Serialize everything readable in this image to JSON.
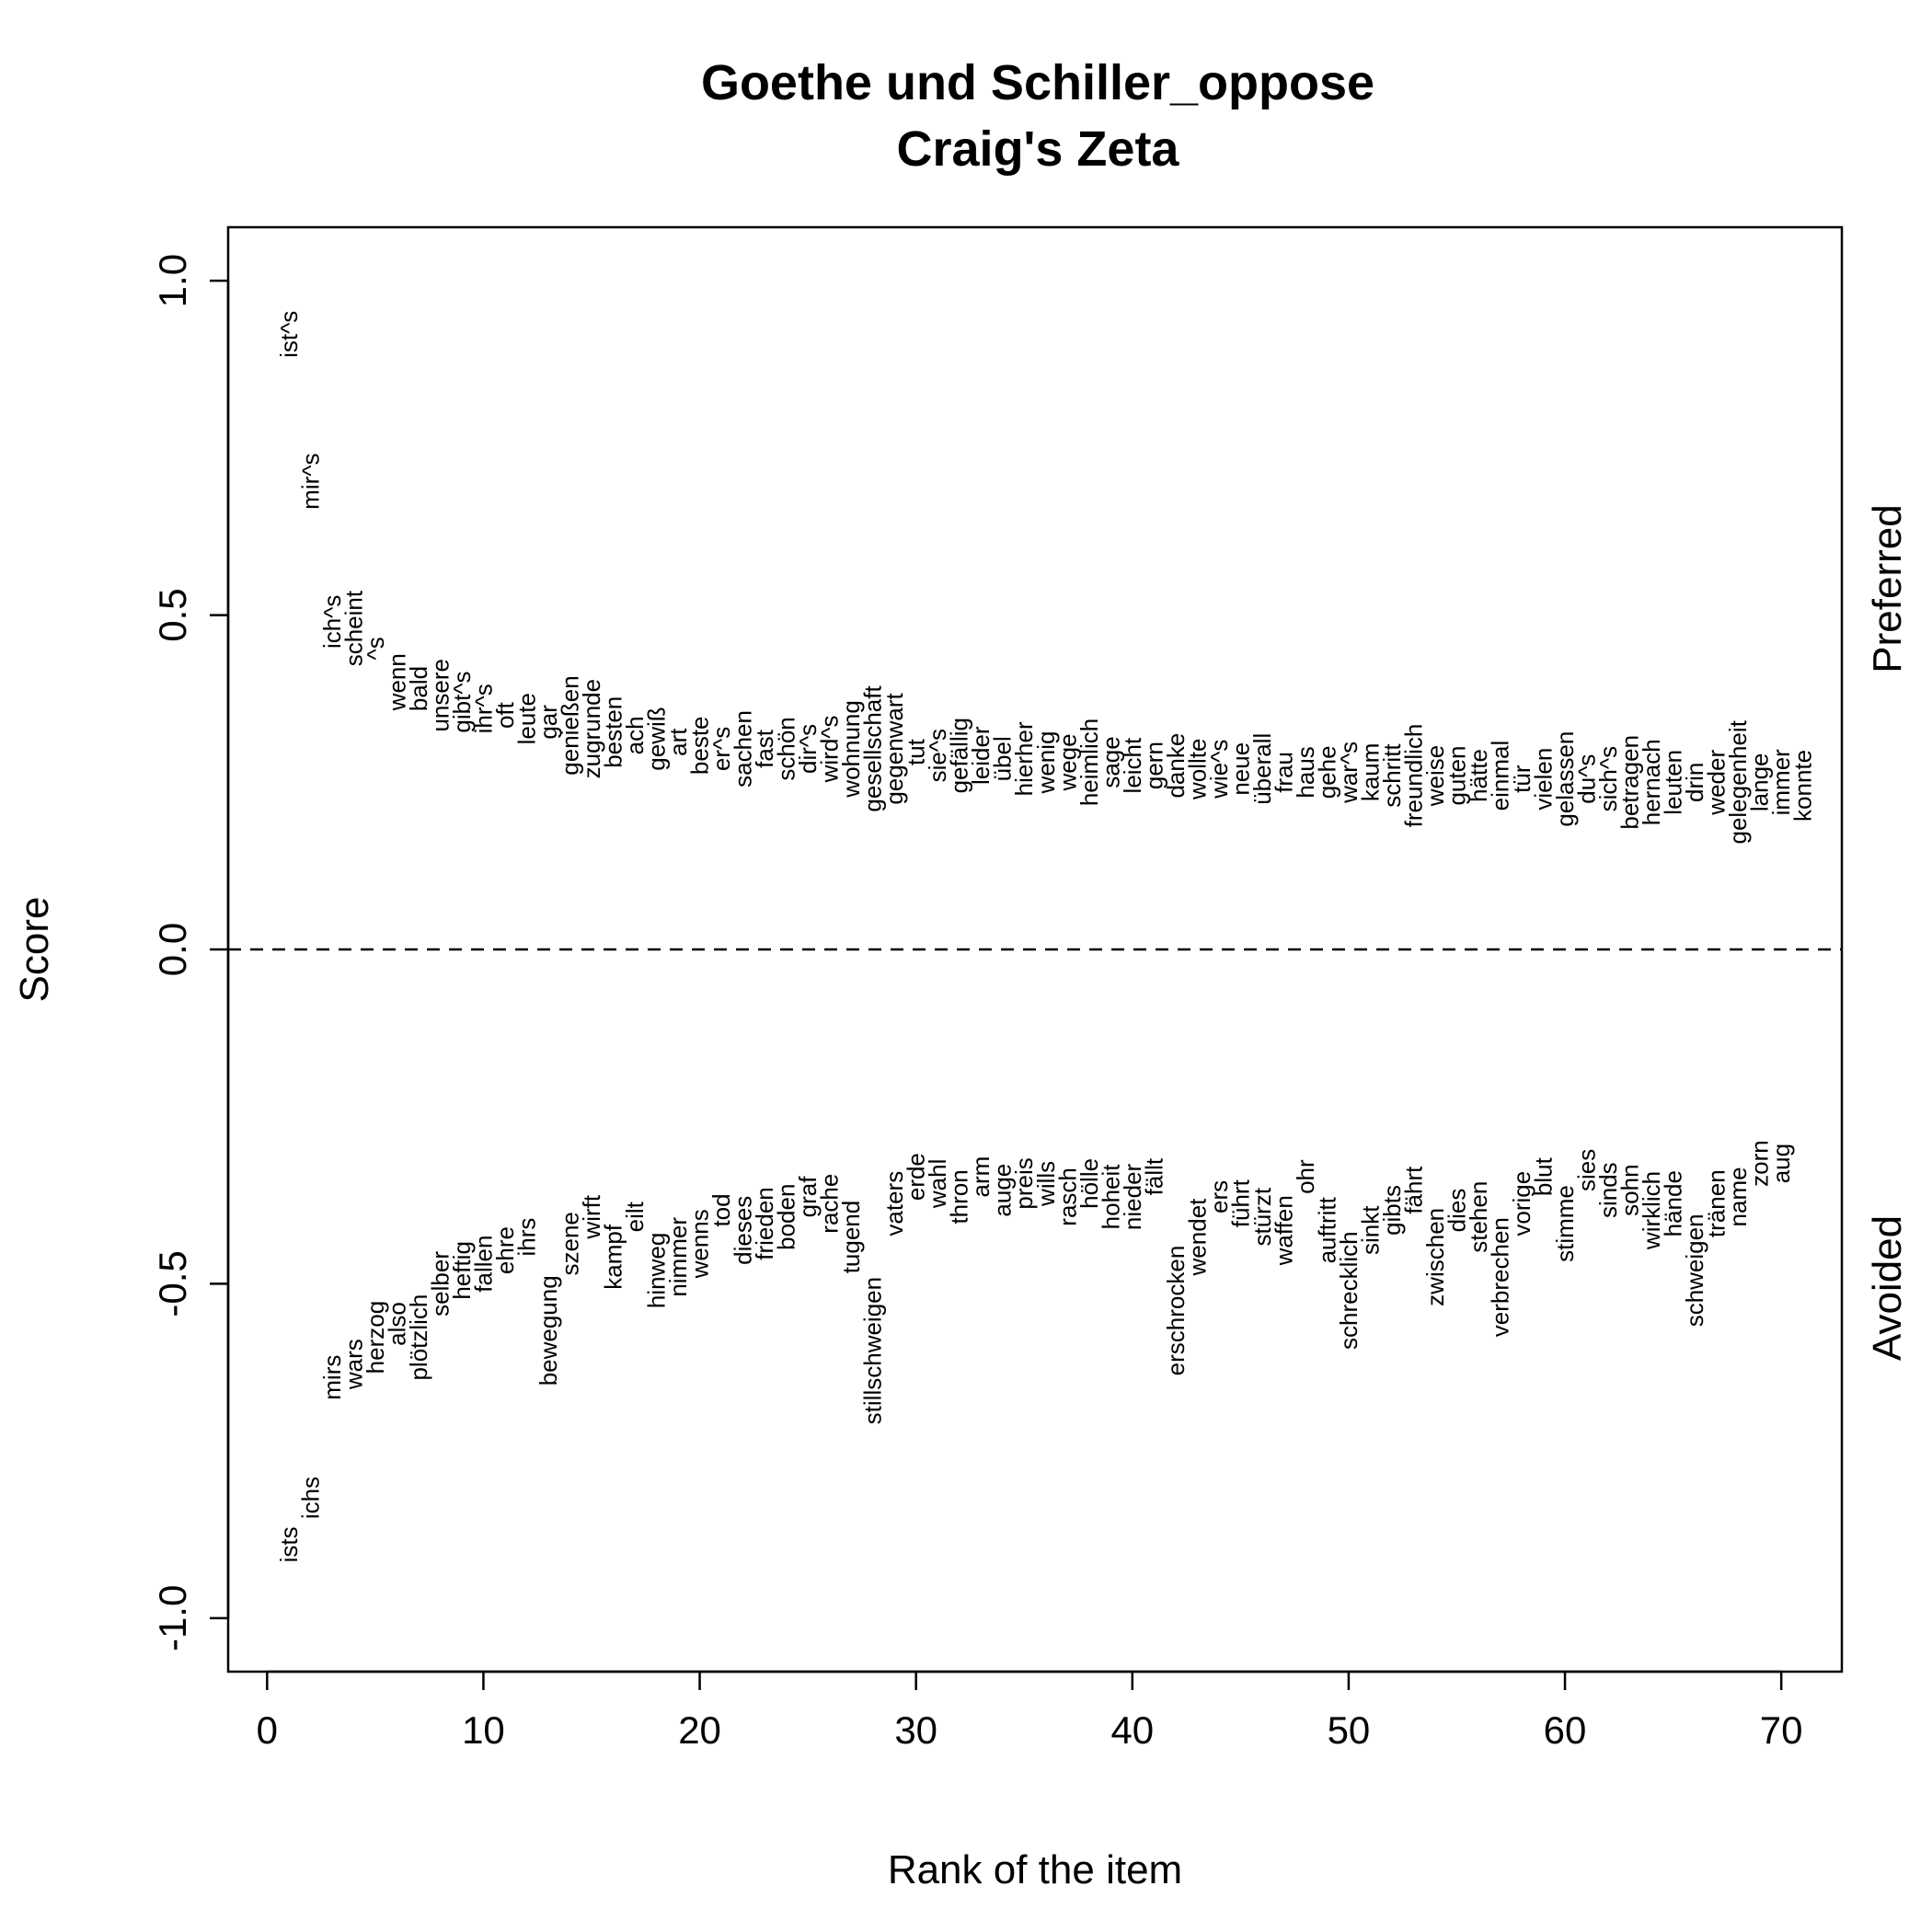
{
  "chart_data": {
    "type": "scatter",
    "title": "Goethe und Schiller_oppose",
    "subtitle": "Craig's Zeta",
    "xlabel": "Rank of the item",
    "ylabel": "Score",
    "xlim": [
      -1.8,
      72.8
    ],
    "ylim": [
      -1.08,
      1.08
    ],
    "xticks": [
      0,
      10,
      20,
      30,
      40,
      50,
      60,
      70
    ],
    "xtick_labels": [
      "0",
      "10",
      "20",
      "30",
      "40",
      "50",
      "60",
      "70"
    ],
    "yticks": [
      -1.0,
      -0.5,
      0.0,
      0.5,
      1.0
    ],
    "ytick_labels": [
      "-1.0",
      "-0.5",
      "0.0",
      "0.5",
      "1.0"
    ],
    "reference_line": {
      "y": 0,
      "style": "dashed"
    },
    "grid": false,
    "legend": "none",
    "side_labels": {
      "top": "Preferred",
      "bottom": "Avoided"
    },
    "series": [
      {
        "name": "Preferred",
        "points": [
          {
            "x": 1,
            "y": 0.92,
            "label": "ist^s"
          },
          {
            "x": 2,
            "y": 0.7,
            "label": "mir^s"
          },
          {
            "x": 3,
            "y": 0.49,
            "label": "ich^s"
          },
          {
            "x": 4,
            "y": 0.48,
            "label": "scheint"
          },
          {
            "x": 5,
            "y": 0.45,
            "label": "^s"
          },
          {
            "x": 6,
            "y": 0.4,
            "label": "wenn"
          },
          {
            "x": 7,
            "y": 0.39,
            "label": "bald"
          },
          {
            "x": 8,
            "y": 0.38,
            "label": "unsere"
          },
          {
            "x": 9,
            "y": 0.37,
            "label": "gibt^s"
          },
          {
            "x": 10,
            "y": 0.36,
            "label": "ihr^s"
          },
          {
            "x": 11,
            "y": 0.35,
            "label": "oft"
          },
          {
            "x": 12,
            "y": 0.345,
            "label": "leute"
          },
          {
            "x": 13,
            "y": 0.34,
            "label": "gar"
          },
          {
            "x": 14,
            "y": 0.335,
            "label": "genießen"
          },
          {
            "x": 15,
            "y": 0.33,
            "label": "zugrunde"
          },
          {
            "x": 16,
            "y": 0.325,
            "label": "besten"
          },
          {
            "x": 17,
            "y": 0.32,
            "label": "ach"
          },
          {
            "x": 18,
            "y": 0.315,
            "label": "gewiß"
          },
          {
            "x": 19,
            "y": 0.31,
            "label": "art"
          },
          {
            "x": 20,
            "y": 0.305,
            "label": "beste"
          },
          {
            "x": 21,
            "y": 0.3,
            "label": "er^s"
          },
          {
            "x": 22,
            "y": 0.3,
            "label": "sachen"
          },
          {
            "x": 23,
            "y": 0.3,
            "label": "fast"
          },
          {
            "x": 24,
            "y": 0.3,
            "label": "schön"
          },
          {
            "x": 25,
            "y": 0.3,
            "label": "dir^s"
          },
          {
            "x": 26,
            "y": 0.3,
            "label": "wird^s"
          },
          {
            "x": 27,
            "y": 0.3,
            "label": "wohnung"
          },
          {
            "x": 28,
            "y": 0.3,
            "label": "gesellschaft"
          },
          {
            "x": 29,
            "y": 0.3,
            "label": "gegenwart"
          },
          {
            "x": 30,
            "y": 0.295,
            "label": "tut"
          },
          {
            "x": 31,
            "y": 0.29,
            "label": "sie^s"
          },
          {
            "x": 32,
            "y": 0.29,
            "label": "gefällig"
          },
          {
            "x": 33,
            "y": 0.29,
            "label": "leider"
          },
          {
            "x": 34,
            "y": 0.285,
            "label": "übel"
          },
          {
            "x": 35,
            "y": 0.285,
            "label": "hierher"
          },
          {
            "x": 36,
            "y": 0.28,
            "label": "wenig"
          },
          {
            "x": 37,
            "y": 0.28,
            "label": "wege"
          },
          {
            "x": 38,
            "y": 0.28,
            "label": "heimlich"
          },
          {
            "x": 39,
            "y": 0.28,
            "label": "sage"
          },
          {
            "x": 40,
            "y": 0.275,
            "label": "leicht"
          },
          {
            "x": 41,
            "y": 0.275,
            "label": "gern"
          },
          {
            "x": 42,
            "y": 0.275,
            "label": "danke"
          },
          {
            "x": 43,
            "y": 0.27,
            "label": "wollte"
          },
          {
            "x": 44,
            "y": 0.27,
            "label": "wie^s"
          },
          {
            "x": 45,
            "y": 0.27,
            "label": "neue"
          },
          {
            "x": 46,
            "y": 0.27,
            "label": "überall"
          },
          {
            "x": 47,
            "y": 0.265,
            "label": "frau"
          },
          {
            "x": 48,
            "y": 0.265,
            "label": "haus"
          },
          {
            "x": 49,
            "y": 0.265,
            "label": "gehe"
          },
          {
            "x": 50,
            "y": 0.265,
            "label": "war^s"
          },
          {
            "x": 51,
            "y": 0.265,
            "label": "kaum"
          },
          {
            "x": 52,
            "y": 0.26,
            "label": "schritt"
          },
          {
            "x": 53,
            "y": 0.26,
            "label": "freundlich"
          },
          {
            "x": 54,
            "y": 0.26,
            "label": "weise"
          },
          {
            "x": 55,
            "y": 0.26,
            "label": "guten"
          },
          {
            "x": 56,
            "y": 0.26,
            "label": "hätte"
          },
          {
            "x": 57,
            "y": 0.26,
            "label": "einmal"
          },
          {
            "x": 58,
            "y": 0.255,
            "label": "tür"
          },
          {
            "x": 59,
            "y": 0.255,
            "label": "vielen"
          },
          {
            "x": 60,
            "y": 0.255,
            "label": "gelassen"
          },
          {
            "x": 61,
            "y": 0.255,
            "label": "du^s"
          },
          {
            "x": 62,
            "y": 0.255,
            "label": "sich^s"
          },
          {
            "x": 63,
            "y": 0.25,
            "label": "betragen"
          },
          {
            "x": 64,
            "y": 0.25,
            "label": "hernach"
          },
          {
            "x": 65,
            "y": 0.25,
            "label": "leuten"
          },
          {
            "x": 66,
            "y": 0.25,
            "label": "drin"
          },
          {
            "x": 67,
            "y": 0.25,
            "label": "weder"
          },
          {
            "x": 68,
            "y": 0.25,
            "label": "gelegenheit"
          },
          {
            "x": 69,
            "y": 0.25,
            "label": "lange"
          },
          {
            "x": 70,
            "y": 0.25,
            "label": "immer"
          },
          {
            "x": 71,
            "y": 0.245,
            "label": "konnte"
          }
        ]
      },
      {
        "name": "Avoided",
        "points": [
          {
            "x": 1,
            "y": -0.89,
            "label": "ists"
          },
          {
            "x": 2,
            "y": -0.82,
            "label": "ichs"
          },
          {
            "x": 3,
            "y": -0.64,
            "label": "mirs"
          },
          {
            "x": 4,
            "y": -0.62,
            "label": "wars"
          },
          {
            "x": 5,
            "y": -0.58,
            "label": "herzog"
          },
          {
            "x": 6,
            "y": -0.56,
            "label": "also"
          },
          {
            "x": 7,
            "y": -0.58,
            "label": "plötzlich"
          },
          {
            "x": 8,
            "y": -0.5,
            "label": "selber"
          },
          {
            "x": 9,
            "y": -0.48,
            "label": "heftig"
          },
          {
            "x": 10,
            "y": -0.47,
            "label": "fallen"
          },
          {
            "x": 11,
            "y": -0.45,
            "label": "ehre"
          },
          {
            "x": 12,
            "y": -0.43,
            "label": "ihrs"
          },
          {
            "x": 13,
            "y": -0.57,
            "label": "bewegung"
          },
          {
            "x": 14,
            "y": -0.44,
            "label": "szene"
          },
          {
            "x": 15,
            "y": -0.4,
            "label": "wirft"
          },
          {
            "x": 16,
            "y": -0.46,
            "label": "kampf"
          },
          {
            "x": 17,
            "y": -0.4,
            "label": "eilt"
          },
          {
            "x": 18,
            "y": -0.48,
            "label": "hinweg"
          },
          {
            "x": 19,
            "y": -0.46,
            "label": "nimmer"
          },
          {
            "x": 20,
            "y": -0.44,
            "label": "wenns"
          },
          {
            "x": 21,
            "y": -0.39,
            "label": "tod"
          },
          {
            "x": 22,
            "y": -0.42,
            "label": "dieses"
          },
          {
            "x": 23,
            "y": -0.41,
            "label": "frieden"
          },
          {
            "x": 24,
            "y": -0.4,
            "label": "boden"
          },
          {
            "x": 25,
            "y": -0.37,
            "label": "graf"
          },
          {
            "x": 26,
            "y": -0.38,
            "label": "rache"
          },
          {
            "x": 27,
            "y": -0.43,
            "label": "tugend"
          },
          {
            "x": 28,
            "y": -0.6,
            "label": "stillschweigen"
          },
          {
            "x": 29,
            "y": -0.38,
            "label": "vaters"
          },
          {
            "x": 30,
            "y": -0.34,
            "label": "erde"
          },
          {
            "x": 31,
            "y": -0.35,
            "label": "wahl"
          },
          {
            "x": 32,
            "y": -0.37,
            "label": "thron"
          },
          {
            "x": 33,
            "y": -0.34,
            "label": "arm"
          },
          {
            "x": 34,
            "y": -0.36,
            "label": "auge"
          },
          {
            "x": 35,
            "y": -0.35,
            "label": "preis"
          },
          {
            "x": 36,
            "y": -0.35,
            "label": "wills"
          },
          {
            "x": 37,
            "y": -0.37,
            "label": "rasch"
          },
          {
            "x": 38,
            "y": -0.35,
            "label": "hölle"
          },
          {
            "x": 39,
            "y": -0.37,
            "label": "hoheit"
          },
          {
            "x": 40,
            "y": -0.37,
            "label": "nieder"
          },
          {
            "x": 41,
            "y": -0.34,
            "label": "fällt"
          },
          {
            "x": 42,
            "y": -0.54,
            "label": "erschrocken"
          },
          {
            "x": 43,
            "y": -0.43,
            "label": "wendet"
          },
          {
            "x": 44,
            "y": -0.37,
            "label": "ers"
          },
          {
            "x": 45,
            "y": -0.38,
            "label": "führt"
          },
          {
            "x": 46,
            "y": -0.4,
            "label": "stürzt"
          },
          {
            "x": 47,
            "y": -0.42,
            "label": "waffen"
          },
          {
            "x": 48,
            "y": -0.34,
            "label": "ohr"
          },
          {
            "x": 49,
            "y": -0.42,
            "label": "auftritt"
          },
          {
            "x": 50,
            "y": -0.51,
            "label": "schrecklich"
          },
          {
            "x": 51,
            "y": -0.42,
            "label": "sinkt"
          },
          {
            "x": 52,
            "y": -0.39,
            "label": "gibts"
          },
          {
            "x": 53,
            "y": -0.36,
            "label": "fährt"
          },
          {
            "x": 54,
            "y": -0.46,
            "label": "zwischen"
          },
          {
            "x": 55,
            "y": -0.39,
            "label": "dies"
          },
          {
            "x": 56,
            "y": -0.4,
            "label": "stehen"
          },
          {
            "x": 57,
            "y": -0.49,
            "label": "verbrechen"
          },
          {
            "x": 58,
            "y": -0.38,
            "label": "vorige"
          },
          {
            "x": 59,
            "y": -0.34,
            "label": "blut"
          },
          {
            "x": 60,
            "y": -0.41,
            "label": "stimme"
          },
          {
            "x": 61,
            "y": -0.33,
            "label": "sies"
          },
          {
            "x": 62,
            "y": -0.36,
            "label": "sinds"
          },
          {
            "x": 63,
            "y": -0.36,
            "label": "sohn"
          },
          {
            "x": 64,
            "y": -0.39,
            "label": "wirklich"
          },
          {
            "x": 65,
            "y": -0.38,
            "label": "hände"
          },
          {
            "x": 66,
            "y": -0.48,
            "label": "schweigen"
          },
          {
            "x": 67,
            "y": -0.38,
            "label": "tränen"
          },
          {
            "x": 68,
            "y": -0.37,
            "label": "name"
          },
          {
            "x": 69,
            "y": -0.32,
            "label": "zorn"
          },
          {
            "x": 70,
            "y": -0.32,
            "label": "aug"
          }
        ]
      }
    ]
  }
}
